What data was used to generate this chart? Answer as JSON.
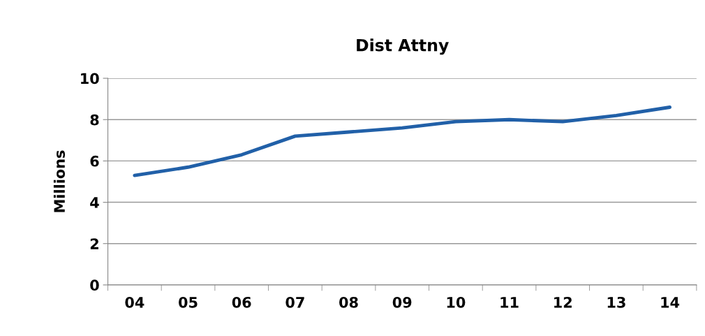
{
  "chart_data": {
    "type": "line",
    "title": "Dist Attny",
    "ylabel": "Millions",
    "categories": [
      "04",
      "05",
      "06",
      "07",
      "08",
      "09",
      "10",
      "11",
      "12",
      "13",
      "14"
    ],
    "series": [
      {
        "color": "#2160a8",
        "values": [
          5.3,
          5.7,
          6.3,
          7.2,
          7.4,
          7.6,
          7.9,
          8.0,
          7.9,
          8.2,
          8.6
        ]
      }
    ],
    "ylim": [
      0,
      10
    ],
    "yticks": [
      0,
      2,
      4,
      6,
      8,
      10
    ],
    "grid": "y",
    "legend": false,
    "marker": "none",
    "line_style": "solid"
  }
}
